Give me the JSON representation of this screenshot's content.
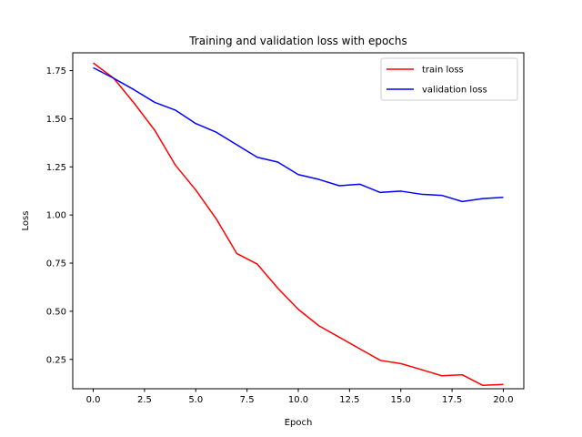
{
  "chart_data": {
    "type": "line",
    "title": "Training and validation loss with epochs",
    "xlabel": "Epoch",
    "ylabel": "Loss",
    "xlim": [
      -1.0,
      21.0
    ],
    "ylim": [
      0.0975,
      1.8425
    ],
    "x_ticks": [
      0.0,
      2.5,
      5.0,
      7.5,
      10.0,
      12.5,
      15.0,
      17.5,
      20.0
    ],
    "x_tick_labels": [
      "0.0",
      "2.5",
      "5.0",
      "7.5",
      "10.0",
      "12.5",
      "15.0",
      "17.5",
      "20.0"
    ],
    "y_ticks": [
      0.25,
      0.5,
      0.75,
      1.0,
      1.25,
      1.5,
      1.75
    ],
    "y_tick_labels": [
      "0.25",
      "0.50",
      "0.75",
      "1.00",
      "1.25",
      "1.50",
      "1.75"
    ],
    "grid": false,
    "legend_position": "top-right",
    "x": [
      0,
      1,
      2,
      3,
      4,
      5,
      6,
      7,
      8,
      9,
      10,
      11,
      12,
      13,
      14,
      15,
      16,
      17,
      18,
      19,
      20
    ],
    "series": [
      {
        "name": "train loss",
        "color": "#ff0000",
        "values": [
          1.79,
          1.71,
          1.58,
          1.44,
          1.26,
          1.13,
          0.98,
          0.8,
          0.745,
          0.62,
          0.51,
          0.425,
          0.365,
          0.305,
          0.245,
          0.228,
          0.197,
          0.165,
          0.17,
          0.115,
          0.12
        ]
      },
      {
        "name": "validation loss",
        "color": "#0000ff",
        "values": [
          1.765,
          1.71,
          1.65,
          1.585,
          1.545,
          1.475,
          1.43,
          1.365,
          1.3,
          1.275,
          1.21,
          1.185,
          1.152,
          1.16,
          1.117,
          1.124,
          1.108,
          1.102,
          1.07,
          1.085,
          1.092
        ]
      }
    ]
  }
}
